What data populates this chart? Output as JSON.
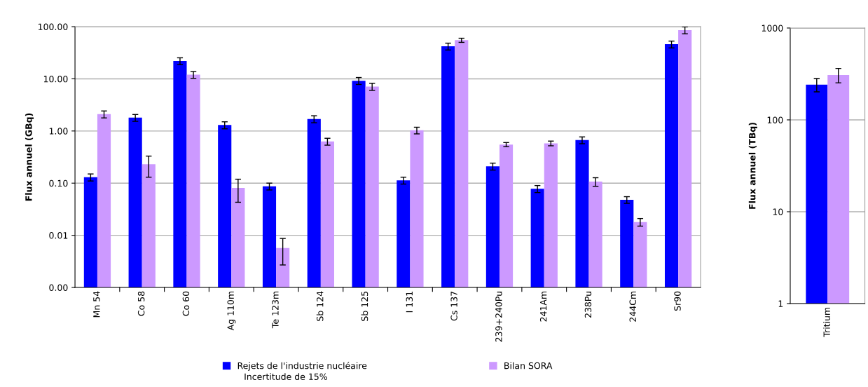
{
  "chart_data": [
    {
      "type": "bar",
      "ylabel": "Flux annuel (GBq)",
      "log": "y",
      "categories": [
        "Mn 54",
        "Co 58",
        "Co 60",
        "Ag 110m",
        "Te 123m",
        "Sb 124",
        "Sb 125",
        "I 131",
        "Cs 137",
        "239+240Pu",
        "241Am",
        "238Pu",
        "244Cm",
        "Sr90"
      ],
      "series": [
        {
          "name": "Rejets de l'industrie nucléaire",
          "color": "#0000ff",
          "values": [
            0.13,
            1.8,
            22,
            1.3,
            0.087,
            1.7,
            9.2,
            0.113,
            42,
            0.21,
            0.078,
            0.67,
            0.048,
            46
          ],
          "errors": [
            0.02,
            0.27,
            3.3,
            0.2,
            0.013,
            0.26,
            1.4,
            0.017,
            6.3,
            0.032,
            0.012,
            0.1,
            0.007,
            6.9
          ]
        },
        {
          "name": "Bilan SORA",
          "color": "#cc99ff",
          "values": [
            2.1,
            0.23,
            12,
            0.081,
            0.0057,
            0.63,
            7.1,
            1.03,
            55,
            0.55,
            0.58,
            0.107,
            0.018,
            86
          ],
          "errors": [
            0.32,
            0.1,
            1.8,
            0.038,
            0.003,
            0.095,
            1.1,
            0.15,
            5,
            0.05,
            0.06,
            0.02,
            0.003,
            13
          ]
        }
      ],
      "ylim": [
        0.001,
        100
      ],
      "yticks": [
        {
          "value": 0.001,
          "label": "0.00"
        },
        {
          "value": 0.01,
          "label": "0.01"
        },
        {
          "value": 0.1,
          "label": "0.10"
        },
        {
          "value": 1,
          "label": "1.00"
        },
        {
          "value": 10,
          "label": "10.00"
        },
        {
          "value": 100,
          "label": "100.00"
        }
      ],
      "grid": "y",
      "legend": "bottom",
      "annotations": [
        "Incertitude de 15%"
      ]
    },
    {
      "type": "bar",
      "ylabel": "Flux annuel (TBq)",
      "log": "y",
      "categories": [
        "Tritium"
      ],
      "series": [
        {
          "color": "#0000ff",
          "values": [
            242
          ],
          "errors": [
            40
          ]
        },
        {
          "color": "#cc99ff",
          "values": [
            308
          ],
          "errors": [
            55
          ]
        }
      ],
      "ylim": [
        1,
        1000
      ],
      "yticks": [
        1,
        10,
        100,
        1000
      ],
      "grid": "y"
    }
  ]
}
